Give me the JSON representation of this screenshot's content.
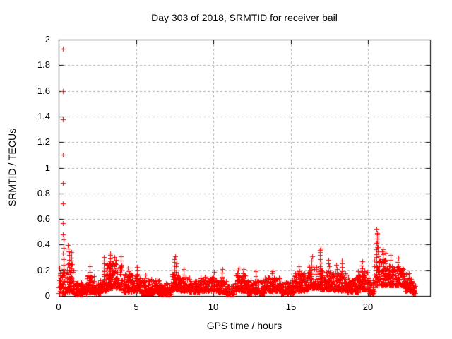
{
  "chart": {
    "title": "Day 303 of 2018, SRMTID for receiver bail",
    "xlabel": "GPS time / hours",
    "ylabel": "SRMTID / TECUs"
  },
  "colors": {
    "marker": "#ff0000",
    "grid": "#b0b0b0",
    "axis": "#000000",
    "background": "#ffffff",
    "text": "#000000"
  },
  "chart_data": {
    "type": "scatter",
    "title": "Day 303 of 2018, SRMTID for receiver bail",
    "xlabel": "GPS time / hours",
    "ylabel": "SRMTID / TECUs",
    "xlim": [
      0,
      24
    ],
    "ylim": [
      0,
      2
    ],
    "x_ticks": {
      "values": [
        0,
        5,
        10,
        15,
        20
      ],
      "labels": [
        "0",
        "5",
        "10",
        "15",
        "20"
      ]
    },
    "y_ticks": {
      "values": [
        0,
        0.2,
        0.4,
        0.6,
        0.8,
        1,
        1.2,
        1.4,
        1.6,
        1.8,
        2
      ],
      "labels": [
        "0",
        "0.2",
        "0.4",
        "0.6",
        "0.8",
        "1",
        "1.2",
        "1.4",
        "1.6",
        "1.8",
        "2"
      ]
    },
    "grid": true,
    "grid_style": "dashed",
    "legend": "none",
    "marker": {
      "shape": "plus",
      "size": 7,
      "color": "#ff0000"
    },
    "series_name": "SRMTID",
    "data_time_range_hours": [
      0,
      23.05
    ],
    "outlier_points": [
      [
        0.27,
        1.93
      ],
      [
        0.27,
        1.6
      ],
      [
        0.28,
        1.38
      ],
      [
        0.27,
        1.1
      ],
      [
        0.28,
        0.88
      ],
      [
        0.27,
        0.72
      ],
      [
        0.28,
        0.57
      ],
      [
        0.27,
        0.48
      ],
      [
        0.3,
        0.44
      ]
    ],
    "dense_cloud": {
      "description": "Dense noisy scatter of ~2900 '+' points hugging 0-0.2 TECUs across 0-23 h; bands give [t_start,t_end,y_min,y_max] envelopes, spike_columns give [t,y_min,y_max,n] vertical strings of points.",
      "points_per_hour": 115,
      "vertical_bias_power": 2.0,
      "spike_x_jitter": 0.08,
      "seed": 42,
      "bands": [
        [
          0.0,
          0.45,
          0.02,
          0.22
        ],
        [
          0.45,
          1.0,
          0.03,
          0.25
        ],
        [
          1.0,
          1.8,
          0.01,
          0.11
        ],
        [
          1.8,
          2.3,
          0.03,
          0.16
        ],
        [
          2.3,
          2.7,
          0.02,
          0.11
        ],
        [
          2.7,
          3.1,
          0.04,
          0.2
        ],
        [
          3.1,
          4.1,
          0.06,
          0.26
        ],
        [
          4.1,
          4.8,
          0.03,
          0.17
        ],
        [
          4.8,
          5.3,
          0.04,
          0.16
        ],
        [
          5.3,
          6.5,
          0.02,
          0.13
        ],
        [
          6.5,
          7.3,
          0.01,
          0.1
        ],
        [
          7.3,
          7.75,
          0.05,
          0.18
        ],
        [
          7.75,
          8.45,
          0.04,
          0.15
        ],
        [
          8.45,
          9.1,
          0.03,
          0.12
        ],
        [
          9.1,
          10.2,
          0.04,
          0.15
        ],
        [
          10.2,
          10.8,
          0.03,
          0.14
        ],
        [
          10.8,
          11.35,
          0.01,
          0.08
        ],
        [
          11.35,
          12.15,
          0.04,
          0.17
        ],
        [
          12.15,
          13.3,
          0.02,
          0.13
        ],
        [
          13.3,
          14.35,
          0.04,
          0.15
        ],
        [
          14.35,
          15.2,
          0.02,
          0.12
        ],
        [
          15.2,
          16.1,
          0.04,
          0.18
        ],
        [
          16.1,
          16.75,
          0.06,
          0.24
        ],
        [
          16.75,
          17.8,
          0.05,
          0.2
        ],
        [
          17.8,
          18.65,
          0.04,
          0.18
        ],
        [
          18.65,
          19.35,
          0.03,
          0.15
        ],
        [
          19.35,
          20.05,
          0.05,
          0.2
        ],
        [
          20.05,
          20.4,
          0.02,
          0.12
        ],
        [
          20.4,
          21.2,
          0.08,
          0.28
        ],
        [
          21.2,
          22.3,
          0.08,
          0.24
        ],
        [
          22.3,
          22.8,
          0.04,
          0.18
        ],
        [
          22.8,
          23.05,
          0.02,
          0.1
        ]
      ],
      "spike_columns": [
        [
          0.3,
          0.08,
          0.38,
          8
        ],
        [
          0.65,
          0.08,
          0.4,
          12
        ],
        [
          0.8,
          0.06,
          0.33,
          10
        ],
        [
          2.05,
          0.05,
          0.22,
          6
        ],
        [
          2.9,
          0.05,
          0.31,
          9
        ],
        [
          3.3,
          0.08,
          0.34,
          11
        ],
        [
          3.65,
          0.08,
          0.31,
          9
        ],
        [
          4.0,
          0.06,
          0.3,
          8
        ],
        [
          4.5,
          0.04,
          0.22,
          6
        ],
        [
          5.05,
          0.06,
          0.22,
          8
        ],
        [
          5.6,
          0.04,
          0.17,
          5
        ],
        [
          7.5,
          0.08,
          0.31,
          10
        ],
        [
          7.6,
          0.06,
          0.26,
          7
        ],
        [
          8.1,
          0.04,
          0.2,
          5
        ],
        [
          10.0,
          0.04,
          0.19,
          5
        ],
        [
          10.55,
          0.04,
          0.21,
          6
        ],
        [
          11.6,
          0.05,
          0.23,
          7
        ],
        [
          11.95,
          0.05,
          0.21,
          6
        ],
        [
          12.7,
          0.03,
          0.2,
          5
        ],
        [
          13.8,
          0.04,
          0.2,
          6
        ],
        [
          15.55,
          0.05,
          0.23,
          7
        ],
        [
          16.35,
          0.08,
          0.3,
          8
        ],
        [
          16.9,
          0.1,
          0.38,
          13
        ],
        [
          17.45,
          0.06,
          0.28,
          9
        ],
        [
          17.95,
          0.05,
          0.25,
          7
        ],
        [
          18.3,
          0.06,
          0.28,
          8
        ],
        [
          19.6,
          0.06,
          0.28,
          8
        ],
        [
          20.55,
          0.12,
          0.53,
          15
        ],
        [
          20.63,
          0.15,
          0.46,
          9
        ],
        [
          20.95,
          0.1,
          0.37,
          11
        ],
        [
          21.1,
          0.1,
          0.33,
          7
        ],
        [
          21.4,
          0.1,
          0.32,
          7
        ],
        [
          21.9,
          0.1,
          0.3,
          7
        ]
      ]
    }
  }
}
